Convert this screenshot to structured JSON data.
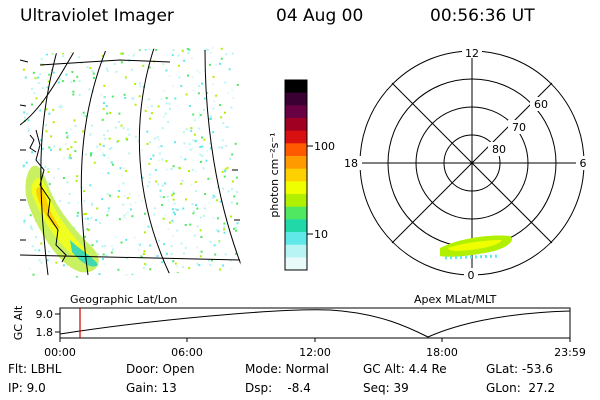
{
  "header": {
    "title": "Ultraviolet Imager",
    "date": "04 Aug 00",
    "time": "00:56:36 UT"
  },
  "geo_panel": {
    "label": "Geographic Lat/Lon"
  },
  "colorbar": {
    "label": "photon cm⁻²s⁻¹",
    "ticks": [
      "100",
      "10"
    ],
    "colors": [
      "#000000",
      "#3a0033",
      "#6a0044",
      "#a00022",
      "#d81010",
      "#ff5a00",
      "#ff9a00",
      "#ffd000",
      "#f0ff00",
      "#b0f000",
      "#50e860",
      "#20d8a8",
      "#60e8e8",
      "#b8f4f4",
      "#e8fafa"
    ]
  },
  "polar_panel": {
    "label": "Apex MLat/MLT",
    "hour_labels": {
      "top": "12",
      "left": "18",
      "right": "6",
      "bottom": "0"
    },
    "lat_labels": [
      "60",
      "70",
      "80"
    ]
  },
  "timeline": {
    "ylabel": "GC Alt",
    "yticks": [
      "9.0",
      "1.8"
    ],
    "xticks": [
      "00:00",
      "06:00",
      "12:00",
      "18:00",
      "23:59"
    ],
    "marker_color": "#cc0000"
  },
  "status": {
    "flt": "Flt: LBHL",
    "ip": "IP:  9.0",
    "door": "Door: Open",
    "gain": "Gain: 13",
    "mode": "Mode: Normal",
    "dsp": "Dsp:    -8.4",
    "gcalt": "GC Alt: 4.4 Re",
    "seq": "Seq: 39",
    "glat": "GLat: -53.6",
    "glon": "GLon:  27.2"
  }
}
